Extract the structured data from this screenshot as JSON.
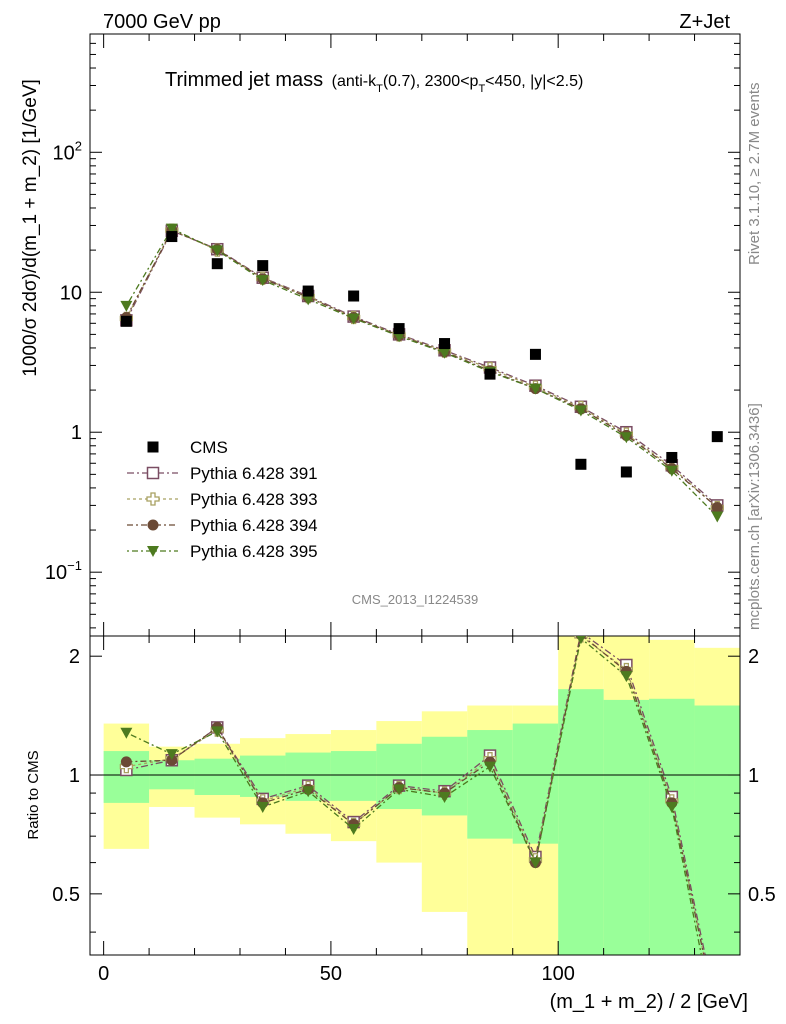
{
  "header": {
    "left": "7000 GeV pp",
    "right": "Z+Jet"
  },
  "plot_title": {
    "main": "Trimmed jet mass",
    "sub_a": "(anti-k",
    "sub_T1": "T",
    "sub_b": "(0.7), 2300<p",
    "sub_T2": "T",
    "sub_c": "<450, |y|<2.5)"
  },
  "side_labels": {
    "rivet": "Rivet 3.1.10, ≥ 2.7M events",
    "mcplots": "mcplots.cern.ch [arXiv:1306.3436]"
  },
  "analysis_id": "CMS_2013_I1224539",
  "axes": {
    "ylabel_main": "1000/σ 2dσ)/d(m_1 + m_2) [1/GeV]",
    "ylabel_ratio": "Ratio to CMS",
    "xlabel": "(m_1 + m_2) / 2 [GeV]",
    "main_yticks": [
      {
        "label": "10",
        "sup": "2",
        "value": 100
      },
      {
        "label": "10",
        "sup": "",
        "value": 10
      },
      {
        "label": "1",
        "sup": "",
        "value": 1
      },
      {
        "label": "10",
        "sup": "−1",
        "value": 0.1
      }
    ],
    "ratio_yticks": [
      {
        "label": "2",
        "value": 2
      },
      {
        "label": "1",
        "value": 1
      },
      {
        "label": "0.5",
        "value": 0.5
      }
    ],
    "xticks": [
      {
        "label": "0",
        "value": 0
      },
      {
        "label": "50",
        "value": 50
      },
      {
        "label": "100",
        "value": 100
      }
    ]
  },
  "legend": [
    {
      "label": "CMS",
      "marker": "filled-square",
      "color": "#000000"
    },
    {
      "label": "Pythia 6.428 391",
      "marker": "open-square",
      "color": "#7a4d63"
    },
    {
      "label": "Pythia 6.428 393",
      "marker": "open-cross",
      "color": "#a8a060"
    },
    {
      "label": "Pythia 6.428 394",
      "marker": "filled-circle",
      "color": "#6b4a35"
    },
    {
      "label": "Pythia 6.428 395",
      "marker": "filled-triangle",
      "color": "#4d7a1f"
    }
  ],
  "chart_data": {
    "type": "scatter",
    "x_range": [
      -3,
      140
    ],
    "main_ylim": [
      0.035,
      700
    ],
    "main_log": true,
    "ratio_ylim": [
      0.35,
      2.25
    ],
    "ratio_log": true,
    "bin_edges": [
      0,
      10,
      20,
      30,
      40,
      50,
      60,
      70,
      80,
      90,
      100,
      110,
      120,
      130,
      140
    ],
    "x": [
      5,
      15,
      25,
      35,
      45,
      55,
      65,
      75,
      85,
      95,
      105,
      115,
      125,
      135
    ],
    "cms": [
      6.2,
      25,
      16,
      15.5,
      10.2,
      9.4,
      5.5,
      4.3,
      2.6,
      3.6,
      0.59,
      0.52,
      0.66,
      0.93
    ],
    "series": [
      {
        "name": "Pythia 6.428 391",
        "values": [
          6.3,
          27.5,
          20.3,
          12.7,
          9.4,
          6.7,
          5.0,
          3.85,
          2.9,
          2.15,
          1.52,
          1.0,
          0.58,
          0.3
        ],
        "ratio": [
          1.03,
          1.09,
          1.32,
          0.87,
          0.94,
          0.76,
          0.94,
          0.91,
          1.12,
          0.62,
          2.3,
          1.9,
          0.88,
          0.25
        ]
      },
      {
        "name": "Pythia 6.428 393",
        "values": [
          6.5,
          27.8,
          20.0,
          12.6,
          9.3,
          6.6,
          4.95,
          3.8,
          2.85,
          2.1,
          1.5,
          0.97,
          0.56,
          0.29
        ],
        "ratio": [
          1.05,
          1.1,
          1.3,
          0.86,
          0.93,
          0.75,
          0.93,
          0.9,
          1.1,
          0.61,
          2.25,
          1.85,
          0.86,
          0.24
        ]
      },
      {
        "name": "Pythia 6.428 394",
        "values": [
          6.6,
          27.7,
          20.2,
          12.5,
          9.2,
          6.6,
          4.9,
          3.75,
          2.75,
          2.05,
          1.47,
          0.95,
          0.55,
          0.29
        ],
        "ratio": [
          1.08,
          1.09,
          1.32,
          0.85,
          0.92,
          0.75,
          0.93,
          0.9,
          1.08,
          0.6,
          2.27,
          1.83,
          0.85,
          0.24
        ]
      },
      {
        "name": "Pythia 6.428 395",
        "values": [
          8.0,
          28.5,
          19.9,
          12.2,
          8.9,
          6.5,
          4.85,
          3.7,
          2.7,
          2.05,
          1.43,
          0.92,
          0.53,
          0.25
        ],
        "ratio": [
          1.28,
          1.13,
          1.29,
          0.83,
          0.91,
          0.73,
          0.92,
          0.88,
          1.05,
          0.6,
          2.22,
          1.78,
          0.83,
          0.22
        ]
      }
    ],
    "ratio_bands": {
      "green_lo": [
        0.85,
        0.92,
        0.89,
        0.88,
        0.86,
        0.86,
        0.82,
        0.79,
        0.69,
        0.67,
        0.2,
        0.2,
        0.2,
        0.2
      ],
      "green_hi": [
        1.15,
        1.09,
        1.1,
        1.12,
        1.14,
        1.15,
        1.2,
        1.25,
        1.3,
        1.35,
        1.65,
        1.55,
        1.56,
        1.5
      ],
      "yellow_lo": [
        0.65,
        0.83,
        0.78,
        0.75,
        0.71,
        0.68,
        0.6,
        0.45,
        0.3,
        0.2,
        0.2,
        0.2,
        0.2,
        0.42
      ],
      "yellow_hi": [
        1.35,
        1.18,
        1.2,
        1.24,
        1.27,
        1.3,
        1.37,
        1.45,
        1.5,
        1.5,
        2.3,
        2.25,
        2.2,
        2.1
      ]
    }
  }
}
